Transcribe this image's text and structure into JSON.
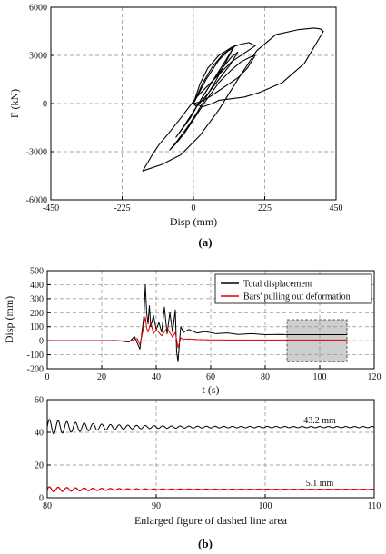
{
  "panel_labels": [
    "(a)",
    "(b)"
  ],
  "colors": {
    "total": "#000000",
    "pullout": "#e00000",
    "shade": "#bdbdbd",
    "grid": "#8c8c8c"
  },
  "chart_data": [
    {
      "type": "line",
      "ylabel": "F (kN)",
      "xlabel": "Disp (mm)",
      "xlim": [
        -450,
        450
      ],
      "ylim": [
        -6000,
        6000
      ],
      "xticks": [
        -450,
        -225,
        0,
        225,
        450
      ],
      "yticks": [
        6000,
        3000,
        0,
        -3000,
        -6000
      ],
      "grid": true,
      "series": [
        {
          "x": [
            0,
            20,
            45,
            80,
            120,
            150,
            175,
            195,
            120,
            60,
            10,
            -40,
            -80,
            -110,
            -130,
            -145,
            -160,
            -100,
            -40,
            20,
            80,
            140,
            200,
            260,
            330,
            380,
            400,
            410,
            350,
            280,
            210,
            160,
            120,
            80,
            60,
            30,
            0
          ],
          "y": [
            0,
            1200,
            2200,
            3000,
            3500,
            3700,
            3800,
            3600,
            2600,
            1400,
            400,
            -900,
            -1900,
            -2600,
            -3200,
            -3700,
            -4200,
            -3800,
            -3200,
            -2000,
            -400,
            1500,
            3300,
            4300,
            4600,
            4700,
            4650,
            4500,
            2500,
            1300,
            700,
            400,
            300,
            200,
            0,
            -200,
            0
          ]
        },
        {
          "x": [
            0,
            30,
            60,
            90,
            110,
            125,
            100,
            70,
            40,
            10,
            -20,
            -50,
            -75,
            -60,
            -30,
            0,
            40,
            80,
            120,
            150,
            180,
            195,
            170,
            140,
            110,
            80,
            50,
            20,
            0
          ],
          "y": [
            0,
            1300,
            2300,
            3000,
            3300,
            3450,
            2500,
            1400,
            400,
            -600,
            -1500,
            -2300,
            -2900,
            -2600,
            -1900,
            -1000,
            200,
            1300,
            2100,
            2600,
            2900,
            3000,
            2200,
            1600,
            1200,
            800,
            400,
            100,
            0
          ]
        },
        {
          "x": [
            0,
            40,
            80,
            110,
            130,
            105,
            70,
            35,
            0,
            -30,
            -55,
            -40,
            -10,
            25,
            60,
            95,
            120,
            140,
            115,
            80,
            45,
            10,
            0
          ],
          "y": [
            0,
            1500,
            2700,
            3300,
            3600,
            2800,
            1700,
            600,
            -500,
            -1400,
            -2100,
            -1700,
            -900,
            300,
            1400,
            2300,
            2900,
            3200,
            2400,
            1500,
            600,
            -200,
            0
          ]
        }
      ]
    },
    {
      "type": "line",
      "ylabel": "Disp (mm)",
      "xlabel": "t (s)",
      "xlim": [
        0,
        120
      ],
      "ylim": [
        -200,
        500
      ],
      "xticks": [
        0,
        20,
        40,
        60,
        80,
        100,
        120
      ],
      "yticks": [
        500,
        400,
        300,
        200,
        100,
        0,
        -100,
        -200
      ],
      "grid": true,
      "legend": "top-right",
      "shaded_region": {
        "x": [
          88,
          110
        ],
        "y": [
          -150,
          150
        ]
      },
      "series": [
        {
          "name": "Total displacement",
          "x": [
            0,
            20,
            25,
            30,
            32,
            34,
            35,
            35.5,
            36,
            36.5,
            37,
            37.5,
            38,
            39,
            40,
            41,
            42,
            43,
            44,
            45,
            46,
            47,
            47.5,
            48,
            49,
            50,
            52,
            55,
            58,
            62,
            66,
            70,
            75,
            80,
            85,
            90,
            100,
            110
          ],
          "y": [
            0,
            0,
            2,
            -10,
            30,
            -60,
            100,
            180,
            400,
            200,
            120,
            250,
            100,
            180,
            80,
            130,
            60,
            240,
            50,
            200,
            60,
            220,
            -80,
            -150,
            100,
            60,
            80,
            55,
            65,
            50,
            55,
            45,
            50,
            43,
            45,
            43,
            43,
            43
          ]
        },
        {
          "name": "Bars' pulling out deformation",
          "x": [
            0,
            20,
            25,
            30,
            33,
            34,
            35,
            35.5,
            36,
            36.5,
            37,
            38,
            39,
            40,
            42,
            44,
            46,
            47,
            48,
            49,
            50,
            52,
            55,
            60,
            70,
            80,
            90,
            100,
            110
          ],
          "y": [
            0,
            0,
            1,
            -5,
            15,
            -30,
            60,
            120,
            170,
            90,
            60,
            130,
            50,
            80,
            35,
            90,
            25,
            60,
            -50,
            20,
            10,
            12,
            8,
            6,
            5,
            5,
            5,
            5,
            5
          ]
        }
      ]
    },
    {
      "type": "line",
      "xlabel": "Enlarged figure of dashed line area",
      "xlim": [
        80,
        110
      ],
      "ylim": [
        0,
        60
      ],
      "xticks": [
        80,
        90,
        100,
        110
      ],
      "yticks": [
        60,
        40,
        20,
        0
      ],
      "grid": true,
      "annotations": [
        {
          "text": "43.2 mm",
          "x": 105,
          "y": 43.2
        },
        {
          "text": "5.1 mm",
          "x": 105,
          "y": 5.1
        }
      ],
      "series": [
        {
          "name": "Total displacement",
          "level": 43.2,
          "amplitude_start": 4.5,
          "period": 0.8,
          "x_start": 80,
          "x_end": 110
        },
        {
          "name": "Bars' pulling out deformation",
          "level": 5.1,
          "amplitude_start": 1.5,
          "period": 0.8,
          "x_start": 80,
          "x_end": 110
        }
      ]
    }
  ]
}
